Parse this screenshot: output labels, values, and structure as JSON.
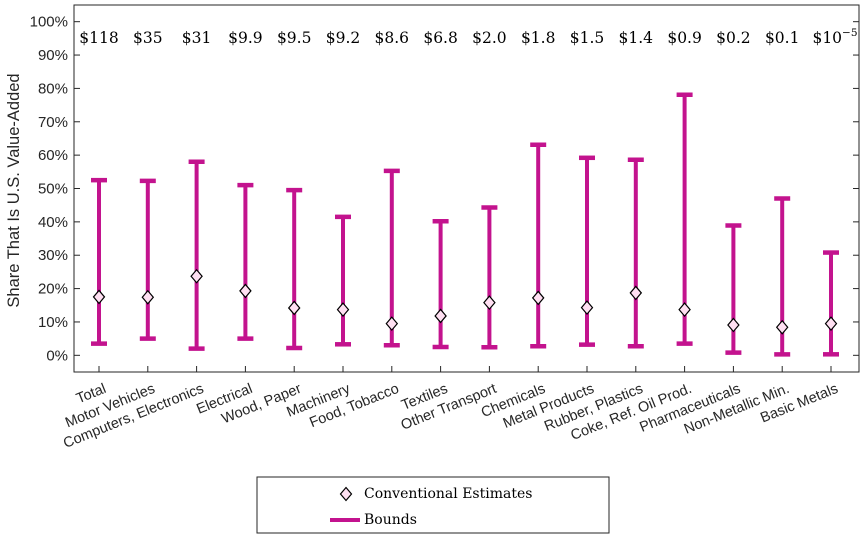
{
  "chart_data": {
    "type": "errorbar",
    "ylabel": "Share That Is U.S. Value-Added",
    "xlabel": "",
    "ylim": [
      -0.05,
      1.05
    ],
    "yticks": [
      0,
      0.1,
      0.2,
      0.3,
      0.4,
      0.5,
      0.6,
      0.7,
      0.8,
      0.9,
      1.0
    ],
    "ytick_labels": [
      "0%",
      "10%",
      "20%",
      "30%",
      "40%",
      "50%",
      "60%",
      "70%",
      "80%",
      "90%",
      "100%"
    ],
    "categories": [
      "Total",
      "Motor Vehicles",
      "Computers, Electronics",
      "Electrical",
      "Wood, Paper",
      "Machinery",
      "Food, Tobacco",
      "Textiles",
      "Other Transport",
      "Chemicals",
      "Metal Products",
      "Rubber, Plastics",
      "Coke, Ref. Oil Prod.",
      "Pharmaceuticals",
      "Non-Metallic Min.",
      "Basic Metals"
    ],
    "top_labels": [
      "$118",
      "$35",
      "$31",
      "$9.9",
      "$9.5",
      "$9.2",
      "$8.6",
      "$6.8",
      "$2.0",
      "$1.8",
      "$1.5",
      "$1.4",
      "$0.9",
      "$0.2",
      "$0.1",
      "$10"
    ],
    "top_label_last_superscript": "−5",
    "series": [
      {
        "name": "Conventional Estimates",
        "marker": "diamond",
        "values": [
          0.175,
          0.174,
          0.237,
          0.193,
          0.142,
          0.137,
          0.095,
          0.118,
          0.158,
          0.172,
          0.143,
          0.187,
          0.137,
          0.091,
          0.084,
          0.095
        ]
      },
      {
        "name": "Bounds",
        "type": "range",
        "lower": [
          0.035,
          0.05,
          0.02,
          0.05,
          0.022,
          0.033,
          0.03,
          0.025,
          0.024,
          0.027,
          0.032,
          0.027,
          0.035,
          0.008,
          0.003,
          0.003
        ],
        "upper": [
          0.525,
          0.523,
          0.58,
          0.51,
          0.495,
          0.415,
          0.553,
          0.402,
          0.443,
          0.631,
          0.592,
          0.586,
          0.781,
          0.389,
          0.47,
          0.308
        ]
      }
    ],
    "colors": {
      "bounds": "#c3138e",
      "marker_fill": "#ffe0f2",
      "marker_stroke": "#000000",
      "axis": "#262626"
    },
    "legend": {
      "position": "bottom-center",
      "items": [
        "Conventional Estimates",
        "Bounds"
      ]
    },
    "grid": false
  }
}
